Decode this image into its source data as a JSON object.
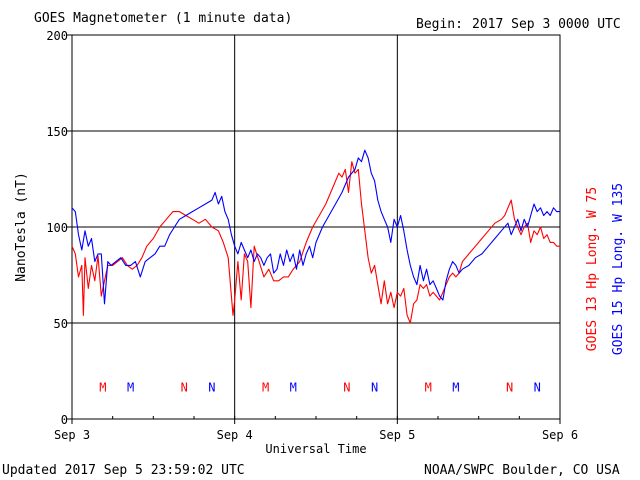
{
  "header": {
    "title": "GOES Magnetometer (1 minute data)",
    "begin_label": "Begin:",
    "begin_value": "2017 Sep 3 0000 UTC"
  },
  "footer": {
    "updated": "Updated 2017 Sep  5 23:59:02 UTC",
    "source": "NOAA/SWPC Boulder, CO USA"
  },
  "colors": {
    "goes13": "#ff0000",
    "goes15": "#0000ff",
    "axis": "#000000"
  },
  "chart_data": {
    "type": "line",
    "xlabel": "Universal Time",
    "ylabel": "NanoTesla (nT)",
    "xlim": [
      0,
      3
    ],
    "ylim": [
      0,
      200
    ],
    "x_unit": "days since Sep 3 0000 UTC",
    "x_ticks": [
      {
        "value": 0,
        "label": "Sep 3"
      },
      {
        "value": 1,
        "label": "Sep 4"
      },
      {
        "value": 2,
        "label": "Sep 5"
      },
      {
        "value": 3,
        "label": "Sep 6"
      }
    ],
    "y_ticks": [
      0,
      50,
      100,
      150,
      200
    ],
    "grid": true,
    "legend_position": "right, rotated vertical",
    "series": [
      {
        "name": "GOES 13 Hp  Long. W 75",
        "color": "#ff0000",
        "points": [
          [
            0.0,
            90
          ],
          [
            0.02,
            86
          ],
          [
            0.04,
            74
          ],
          [
            0.06,
            80
          ],
          [
            0.07,
            54
          ],
          [
            0.08,
            84
          ],
          [
            0.1,
            68
          ],
          [
            0.12,
            80
          ],
          [
            0.14,
            72
          ],
          [
            0.16,
            85
          ],
          [
            0.18,
            64
          ],
          [
            0.2,
            72
          ],
          [
            0.22,
            80
          ],
          [
            0.25,
            80
          ],
          [
            0.28,
            82
          ],
          [
            0.31,
            84
          ],
          [
            0.34,
            80
          ],
          [
            0.37,
            78
          ],
          [
            0.4,
            80
          ],
          [
            0.43,
            84
          ],
          [
            0.46,
            90
          ],
          [
            0.5,
            94
          ],
          [
            0.54,
            100
          ],
          [
            0.58,
            104
          ],
          [
            0.62,
            108
          ],
          [
            0.66,
            108
          ],
          [
            0.7,
            106
          ],
          [
            0.74,
            104
          ],
          [
            0.78,
            102
          ],
          [
            0.82,
            104
          ],
          [
            0.86,
            100
          ],
          [
            0.9,
            98
          ],
          [
            0.93,
            92
          ],
          [
            0.96,
            84
          ],
          [
            0.98,
            64
          ],
          [
            0.99,
            54
          ],
          [
            1.0,
            62
          ],
          [
            1.02,
            82
          ],
          [
            1.04,
            62
          ],
          [
            1.06,
            86
          ],
          [
            1.08,
            82
          ],
          [
            1.1,
            58
          ],
          [
            1.12,
            90
          ],
          [
            1.15,
            82
          ],
          [
            1.18,
            74
          ],
          [
            1.21,
            78
          ],
          [
            1.24,
            72
          ],
          [
            1.27,
            72
          ],
          [
            1.3,
            74
          ],
          [
            1.33,
            74
          ],
          [
            1.36,
            78
          ],
          [
            1.4,
            82
          ],
          [
            1.44,
            92
          ],
          [
            1.48,
            100
          ],
          [
            1.52,
            106
          ],
          [
            1.56,
            112
          ],
          [
            1.6,
            120
          ],
          [
            1.64,
            128
          ],
          [
            1.66,
            126
          ],
          [
            1.68,
            130
          ],
          [
            1.7,
            118
          ],
          [
            1.72,
            134
          ],
          [
            1.74,
            128
          ],
          [
            1.76,
            130
          ],
          [
            1.78,
            112
          ],
          [
            1.8,
            98
          ],
          [
            1.82,
            84
          ],
          [
            1.84,
            76
          ],
          [
            1.86,
            80
          ],
          [
            1.88,
            70
          ],
          [
            1.9,
            60
          ],
          [
            1.92,
            72
          ],
          [
            1.94,
            60
          ],
          [
            1.96,
            66
          ],
          [
            1.98,
            58
          ],
          [
            2.0,
            66
          ],
          [
            2.02,
            64
          ],
          [
            2.04,
            68
          ],
          [
            2.06,
            54
          ],
          [
            2.08,
            50
          ],
          [
            2.1,
            60
          ],
          [
            2.12,
            62
          ],
          [
            2.14,
            70
          ],
          [
            2.16,
            68
          ],
          [
            2.18,
            70
          ],
          [
            2.2,
            64
          ],
          [
            2.22,
            66
          ],
          [
            2.24,
            64
          ],
          [
            2.26,
            62
          ],
          [
            2.28,
            66
          ],
          [
            2.3,
            70
          ],
          [
            2.32,
            74
          ],
          [
            2.34,
            76
          ],
          [
            2.36,
            74
          ],
          [
            2.38,
            76
          ],
          [
            2.4,
            82
          ],
          [
            2.44,
            86
          ],
          [
            2.48,
            90
          ],
          [
            2.52,
            94
          ],
          [
            2.56,
            98
          ],
          [
            2.6,
            102
          ],
          [
            2.64,
            104
          ],
          [
            2.66,
            106
          ],
          [
            2.68,
            110
          ],
          [
            2.7,
            114
          ],
          [
            2.72,
            104
          ],
          [
            2.74,
            100
          ],
          [
            2.76,
            96
          ],
          [
            2.78,
            100
          ],
          [
            2.8,
            102
          ],
          [
            2.82,
            92
          ],
          [
            2.84,
            98
          ],
          [
            2.86,
            96
          ],
          [
            2.88,
            100
          ],
          [
            2.9,
            94
          ],
          [
            2.92,
            96
          ],
          [
            2.94,
            92
          ],
          [
            2.96,
            92
          ],
          [
            2.98,
            90
          ],
          [
            3.0,
            90
          ]
        ]
      },
      {
        "name": "GOES 15 Hp  Long. W 135",
        "color": "#0000ff",
        "points": [
          [
            0.0,
            110
          ],
          [
            0.02,
            108
          ],
          [
            0.04,
            96
          ],
          [
            0.06,
            88
          ],
          [
            0.08,
            98
          ],
          [
            0.1,
            90
          ],
          [
            0.12,
            94
          ],
          [
            0.14,
            82
          ],
          [
            0.16,
            86
          ],
          [
            0.18,
            86
          ],
          [
            0.2,
            60
          ],
          [
            0.22,
            82
          ],
          [
            0.24,
            80
          ],
          [
            0.27,
            82
          ],
          [
            0.3,
            84
          ],
          [
            0.33,
            80
          ],
          [
            0.36,
            80
          ],
          [
            0.39,
            82
          ],
          [
            0.42,
            74
          ],
          [
            0.45,
            82
          ],
          [
            0.48,
            84
          ],
          [
            0.51,
            86
          ],
          [
            0.54,
            90
          ],
          [
            0.57,
            90
          ],
          [
            0.6,
            96
          ],
          [
            0.63,
            100
          ],
          [
            0.66,
            104
          ],
          [
            0.7,
            106
          ],
          [
            0.74,
            108
          ],
          [
            0.78,
            110
          ],
          [
            0.82,
            112
          ],
          [
            0.86,
            114
          ],
          [
            0.88,
            118
          ],
          [
            0.9,
            112
          ],
          [
            0.92,
            116
          ],
          [
            0.94,
            108
          ],
          [
            0.96,
            104
          ],
          [
            0.98,
            96
          ],
          [
            1.0,
            90
          ],
          [
            1.02,
            86
          ],
          [
            1.04,
            92
          ],
          [
            1.06,
            88
          ],
          [
            1.08,
            84
          ],
          [
            1.1,
            88
          ],
          [
            1.12,
            82
          ],
          [
            1.14,
            86
          ],
          [
            1.16,
            84
          ],
          [
            1.18,
            80
          ],
          [
            1.2,
            84
          ],
          [
            1.22,
            86
          ],
          [
            1.24,
            76
          ],
          [
            1.26,
            78
          ],
          [
            1.28,
            86
          ],
          [
            1.3,
            80
          ],
          [
            1.32,
            88
          ],
          [
            1.34,
            82
          ],
          [
            1.36,
            86
          ],
          [
            1.38,
            78
          ],
          [
            1.4,
            88
          ],
          [
            1.42,
            80
          ],
          [
            1.44,
            86
          ],
          [
            1.46,
            90
          ],
          [
            1.48,
            84
          ],
          [
            1.5,
            92
          ],
          [
            1.54,
            100
          ],
          [
            1.58,
            106
          ],
          [
            1.62,
            112
          ],
          [
            1.66,
            118
          ],
          [
            1.7,
            126
          ],
          [
            1.74,
            130
          ],
          [
            1.76,
            136
          ],
          [
            1.78,
            134
          ],
          [
            1.8,
            140
          ],
          [
            1.82,
            136
          ],
          [
            1.84,
            128
          ],
          [
            1.86,
            124
          ],
          [
            1.88,
            114
          ],
          [
            1.9,
            108
          ],
          [
            1.92,
            104
          ],
          [
            1.94,
            100
          ],
          [
            1.96,
            92
          ],
          [
            1.98,
            104
          ],
          [
            2.0,
            100
          ],
          [
            2.02,
            106
          ],
          [
            2.04,
            98
          ],
          [
            2.06,
            88
          ],
          [
            2.08,
            80
          ],
          [
            2.1,
            74
          ],
          [
            2.12,
            70
          ],
          [
            2.14,
            80
          ],
          [
            2.16,
            72
          ],
          [
            2.18,
            78
          ],
          [
            2.2,
            70
          ],
          [
            2.22,
            72
          ],
          [
            2.24,
            68
          ],
          [
            2.26,
            64
          ],
          [
            2.28,
            62
          ],
          [
            2.3,
            72
          ],
          [
            2.32,
            78
          ],
          [
            2.34,
            82
          ],
          [
            2.36,
            80
          ],
          [
            2.38,
            76
          ],
          [
            2.4,
            78
          ],
          [
            2.44,
            80
          ],
          [
            2.48,
            84
          ],
          [
            2.52,
            86
          ],
          [
            2.56,
            90
          ],
          [
            2.6,
            94
          ],
          [
            2.64,
            98
          ],
          [
            2.68,
            102
          ],
          [
            2.7,
            96
          ],
          [
            2.72,
            100
          ],
          [
            2.74,
            104
          ],
          [
            2.76,
            98
          ],
          [
            2.78,
            104
          ],
          [
            2.8,
            100
          ],
          [
            2.82,
            106
          ],
          [
            2.84,
            112
          ],
          [
            2.86,
            108
          ],
          [
            2.88,
            110
          ],
          [
            2.9,
            106
          ],
          [
            2.92,
            108
          ],
          [
            2.94,
            106
          ],
          [
            2.96,
            110
          ],
          [
            2.98,
            108
          ],
          [
            3.0,
            108
          ]
        ]
      }
    ],
    "markers": [
      {
        "x": 0.19,
        "label": "M",
        "color": "#ff0000"
      },
      {
        "x": 0.36,
        "label": "M",
        "color": "#0000ff"
      },
      {
        "x": 0.69,
        "label": "N",
        "color": "#ff0000"
      },
      {
        "x": 0.86,
        "label": "N",
        "color": "#0000ff"
      },
      {
        "x": 1.19,
        "label": "M",
        "color": "#ff0000"
      },
      {
        "x": 1.36,
        "label": "M",
        "color": "#0000ff"
      },
      {
        "x": 1.69,
        "label": "N",
        "color": "#ff0000"
      },
      {
        "x": 1.86,
        "label": "N",
        "color": "#0000ff"
      },
      {
        "x": 2.19,
        "label": "M",
        "color": "#ff0000"
      },
      {
        "x": 2.36,
        "label": "M",
        "color": "#0000ff"
      },
      {
        "x": 2.69,
        "label": "N",
        "color": "#ff0000"
      },
      {
        "x": 2.86,
        "label": "N",
        "color": "#0000ff"
      }
    ],
    "marker_y": 17
  }
}
